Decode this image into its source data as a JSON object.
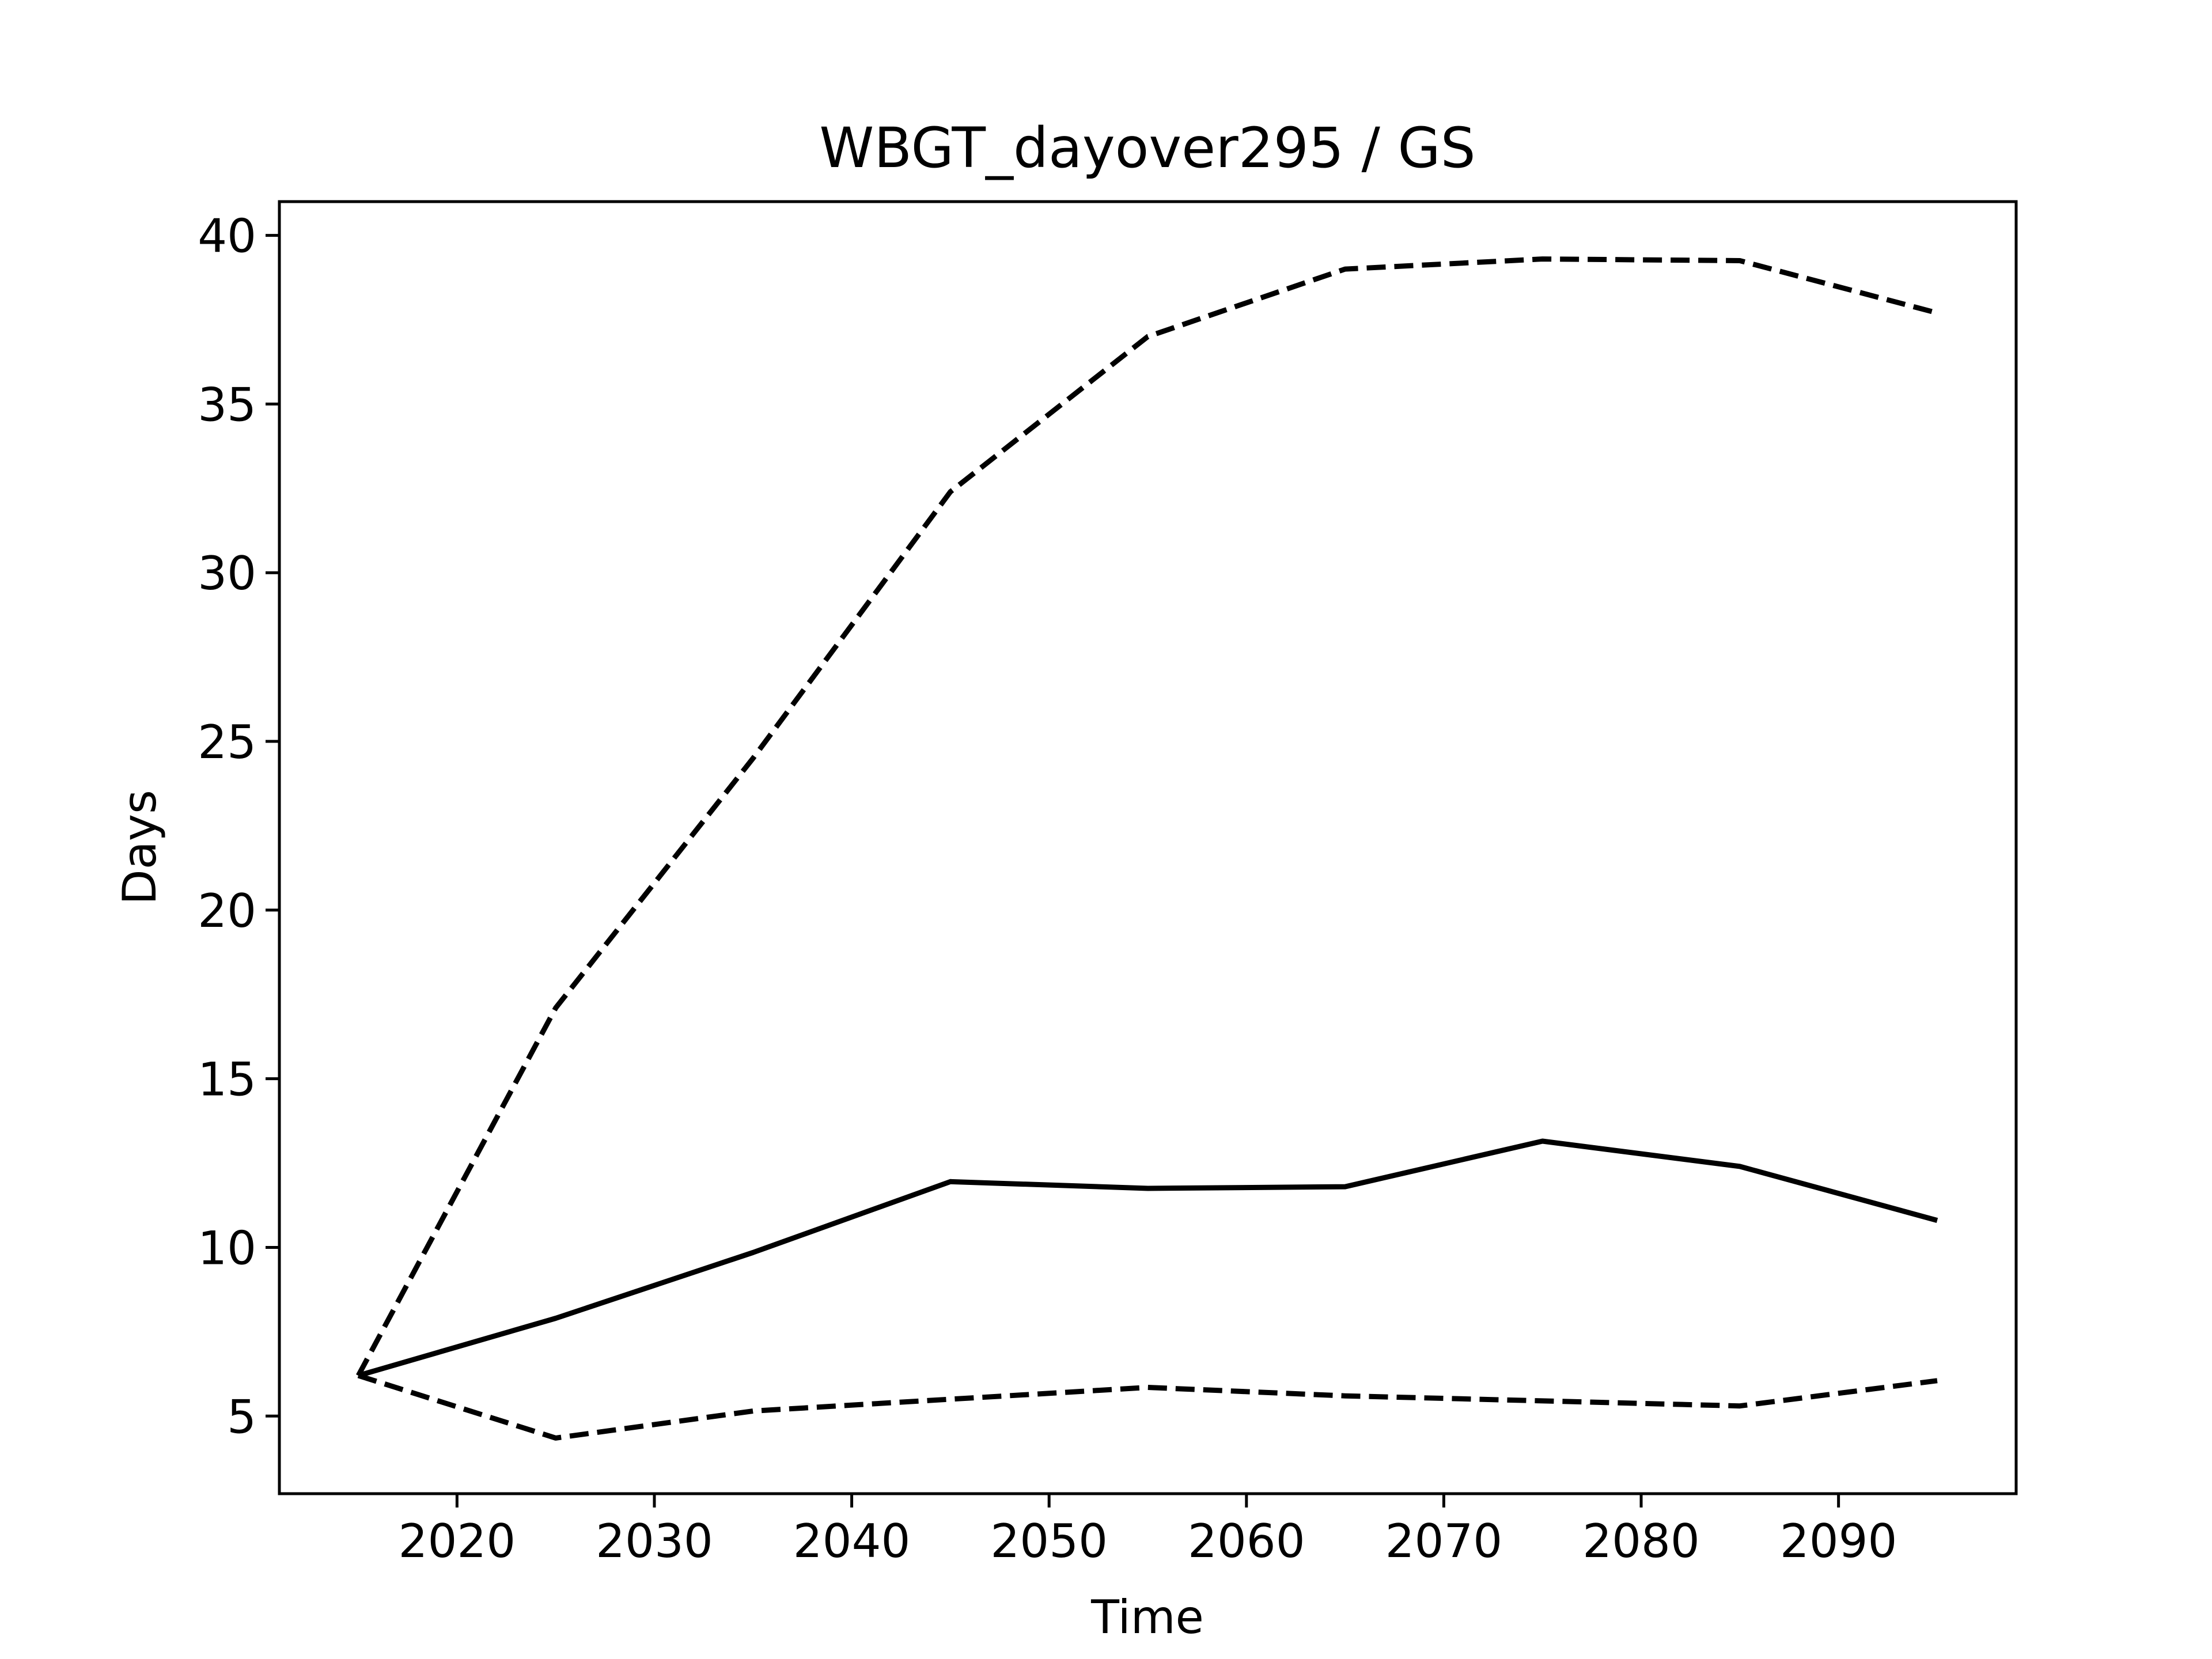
{
  "chart_data": {
    "type": "line",
    "title": "WBGT_dayover295 / GS",
    "xlabel": "Time",
    "ylabel": "Days",
    "xlim": [
      2011,
      2099
    ],
    "ylim": [
      2.7,
      41.0
    ],
    "xticks": [
      2020,
      2030,
      2040,
      2050,
      2060,
      2070,
      2080,
      2090
    ],
    "yticks": [
      5,
      10,
      15,
      20,
      25,
      30,
      35,
      40
    ],
    "grid": false,
    "legend": "none",
    "line_color": "#000000",
    "series": [
      {
        "style": "dashed",
        "x": [
          2015,
          2025,
          2035,
          2045,
          2055,
          2065,
          2075,
          2085,
          2095
        ],
        "y": [
          6.2,
          17.1,
          24.5,
          32.4,
          37.0,
          39.0,
          39.3,
          39.25,
          37.7
        ]
      },
      {
        "style": "solid",
        "x": [
          2015,
          2025,
          2035,
          2045,
          2055,
          2065,
          2075,
          2085,
          2095
        ],
        "y": [
          6.2,
          7.9,
          9.85,
          11.95,
          11.75,
          11.8,
          13.15,
          12.4,
          10.8
        ]
      },
      {
        "style": "dashed",
        "x": [
          2015,
          2025,
          2035,
          2045,
          2055,
          2065,
          2075,
          2085,
          2095
        ],
        "y": [
          6.2,
          4.35,
          5.15,
          5.5,
          5.85,
          5.6,
          5.45,
          5.3,
          6.05
        ]
      }
    ]
  }
}
